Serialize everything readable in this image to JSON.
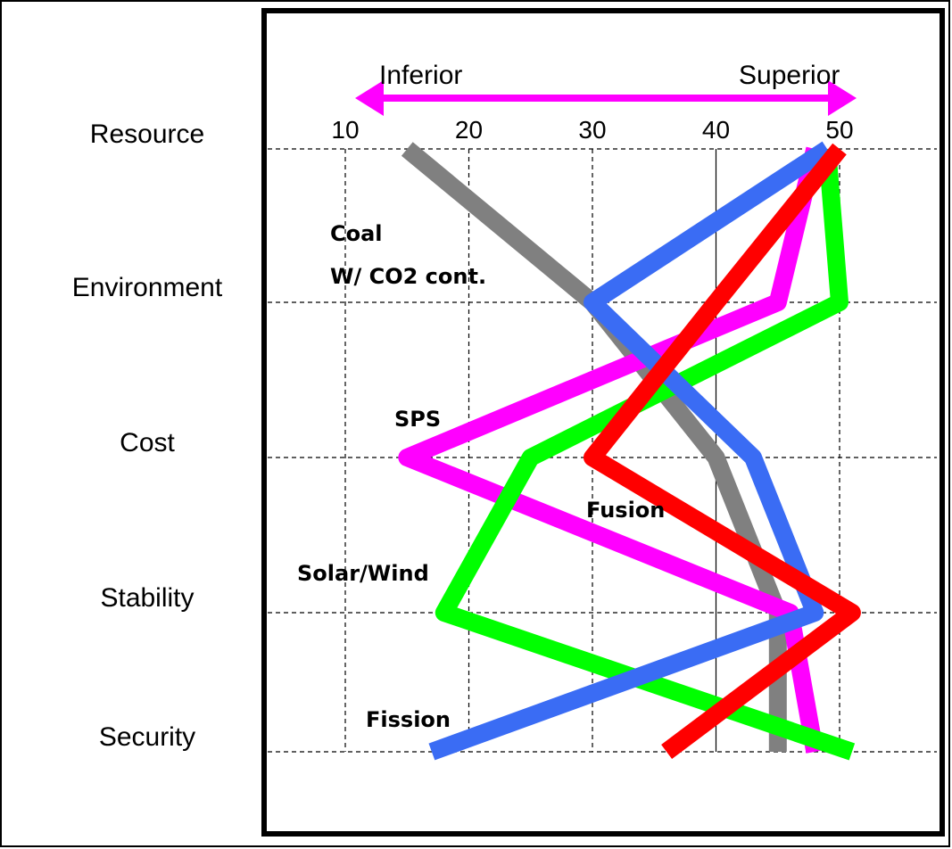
{
  "chart_data": {
    "type": "line",
    "orientation": "horizontal-values",
    "categories": [
      "Resource",
      "Environment",
      "Cost",
      "Stability",
      "Security"
    ],
    "x_ticks": [
      10,
      20,
      30,
      40,
      50
    ],
    "xlim": [
      3,
      55
    ],
    "direction": {
      "left": "Inferior",
      "right": "Superior",
      "color": "#ff00ff"
    },
    "grid": true,
    "series": [
      {
        "name": "Coal\nW/ CO2 cont.",
        "label_lines": [
          "Coal",
          "W/ CO2 cont."
        ],
        "color": "#808080",
        "values": [
          15,
          30,
          40,
          45,
          45
        ]
      },
      {
        "name": "SPS",
        "label_lines": [
          "SPS"
        ],
        "color": "#ff00ff",
        "values": [
          48,
          45,
          15,
          46,
          48
        ]
      },
      {
        "name": "Solar/Wind",
        "label_lines": [
          "Solar/Wind"
        ],
        "color": "#00ff00",
        "values": [
          49,
          50,
          25,
          18,
          51
        ]
      },
      {
        "name": "Fission",
        "label_lines": [
          "Fission"
        ],
        "color": "#3a6cf4",
        "values": [
          49,
          30,
          43,
          48,
          17
        ]
      },
      {
        "name": "Fusion",
        "label_lines": [
          "Fusion"
        ],
        "color": "#ff0000",
        "values": [
          50,
          40,
          30,
          51,
          36
        ]
      }
    ]
  }
}
